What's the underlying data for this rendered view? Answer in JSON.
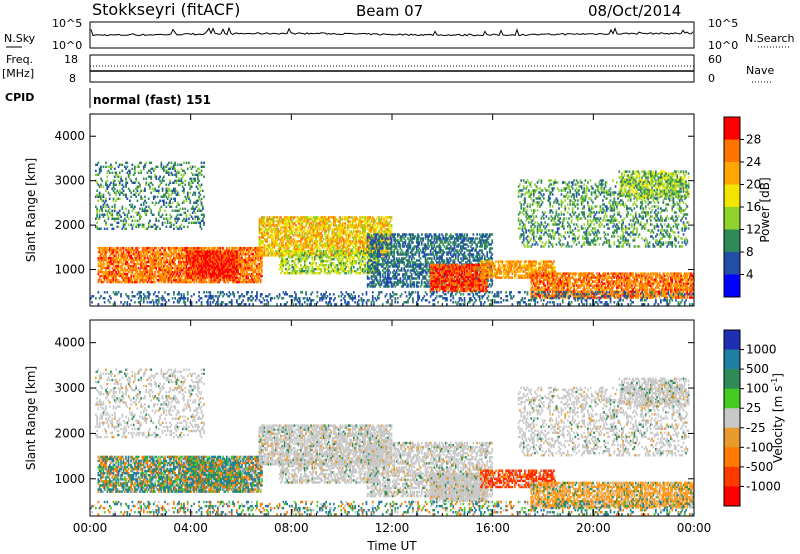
{
  "header": {
    "station": "Stokkseyri (fitACF)",
    "beam": "Beam 07",
    "date": "08/Oct/2014"
  },
  "top_panels": {
    "nsky_label": "N.Sky",
    "nsky_ticks": [
      "10^5",
      "10^0"
    ],
    "nsearch_label": "N.Search",
    "nsearch_ticks": [
      "10^5",
      "10^0"
    ],
    "freq_label": "Freq.",
    "freq_unit": "[MHz]",
    "freq_ticks": [
      "18",
      "8"
    ],
    "nave_label": "Nave",
    "nave_ticks": [
      "60",
      "0"
    ],
    "cpid_label": "CPID",
    "cpid_text": "normal (fast) 151"
  },
  "chart_data": [
    {
      "type": "heatmap",
      "ylabel": "Slant Range [km]",
      "xlabel": "Time UT",
      "ylim": [
        180,
        4500
      ],
      "xlim": [
        0,
        24
      ],
      "yticks": [
        "4000",
        "3000",
        "2000",
        "1000"
      ],
      "xticks": [
        "00:00",
        "04:00",
        "08:00",
        "12:00",
        "16:00",
        "20:00",
        "00:00"
      ],
      "colorbar": {
        "label": "Power [dB]",
        "ticks": [
          "28",
          "24",
          "20",
          "16",
          "12",
          "8",
          "4"
        ],
        "colors": [
          "#ff0000",
          "#ff7300",
          "#ffa500",
          "#f2e600",
          "#8fd22b",
          "#2e8b57",
          "#1f4fa8",
          "#0000ff"
        ]
      }
    },
    {
      "type": "heatmap",
      "ylabel": "Slant Range [km]",
      "xlabel": "Time UT",
      "ylim": [
        180,
        4500
      ],
      "xlim": [
        0,
        24
      ],
      "yticks": [
        "4000",
        "3000",
        "2000",
        "1000"
      ],
      "xticks": [
        "00:00",
        "04:00",
        "08:00",
        "12:00",
        "16:00",
        "20:00",
        "00:00"
      ],
      "colorbar": {
        "label": "Velocity [m s",
        "label_sup": "-1",
        "label_end": "]",
        "ticks": [
          "1000",
          "500",
          "100",
          "25",
          "-25",
          "-100",
          "-500",
          "-1000"
        ],
        "colors": [
          "#1f2fb4",
          "#1f7fa0",
          "#2e8b57",
          "#44cc22",
          "#c8c8c8",
          "#e89b2a",
          "#ff7a00",
          "#ff3a00",
          "#ff0000"
        ]
      }
    }
  ]
}
